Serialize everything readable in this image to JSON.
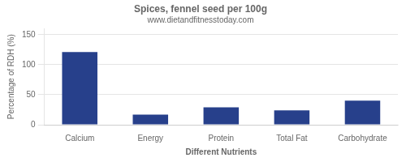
{
  "chart_data": {
    "type": "bar",
    "title": "Spices, fennel seed per 100g",
    "subtitle": "www.dietandfitnesstoday.com",
    "categories": [
      "Calcium",
      "Energy",
      "Protein",
      "Total Fat",
      "Carbohydrate"
    ],
    "values": [
      121,
      17,
      29,
      24,
      40
    ],
    "color": "#27408B",
    "ylabel": "Percentage of RDH (%)",
    "xlabel": "Different Nutrients",
    "ylim": [
      0,
      160
    ],
    "yticks": [
      0,
      50,
      100,
      150
    ],
    "grid": true
  }
}
